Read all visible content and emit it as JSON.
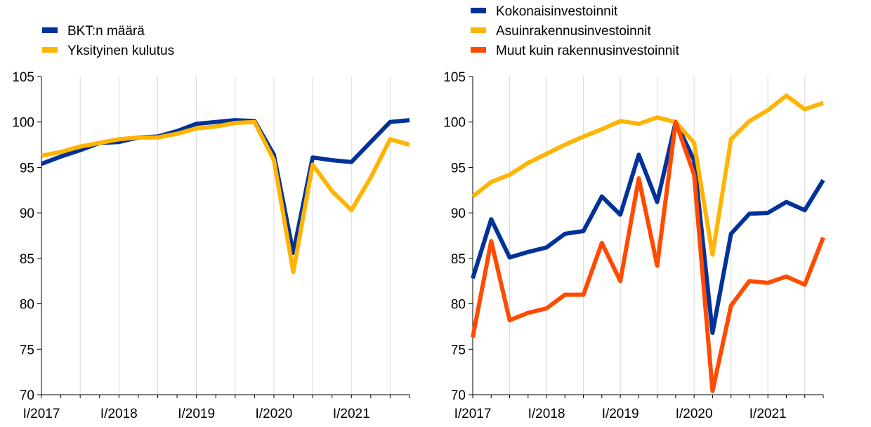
{
  "colors": {
    "navy": "#003299",
    "yellow": "#FFB400",
    "orange": "#FF4B00",
    "grid": "#d9d9d9",
    "axis": "#000000"
  },
  "chart_data": [
    {
      "type": "line",
      "title": "",
      "xlabel": "",
      "ylabel": "",
      "ylim": [
        70,
        105
      ],
      "yticks": [
        105,
        100,
        95,
        90,
        85,
        80,
        75,
        70
      ],
      "xtick_labels": [
        "I/2017",
        "I/2018",
        "I/2019",
        "I/2020",
        "I/2021"
      ],
      "grid": true,
      "legend_position": "top-left",
      "categories": [
        "2017Q1",
        "2017Q2",
        "2017Q3",
        "2017Q4",
        "2018Q1",
        "2018Q2",
        "2018Q3",
        "2018Q4",
        "2019Q1",
        "2019Q2",
        "2019Q3",
        "2019Q4",
        "2020Q1",
        "2020Q2",
        "2020Q3",
        "2020Q4",
        "2021Q1",
        "2021Q2",
        "2021Q3",
        "2021Q4"
      ],
      "series": [
        {
          "name": "BKT:n määrä",
          "color": "#003299",
          "values": [
            95.4,
            96.2,
            96.9,
            97.7,
            97.8,
            98.3,
            98.4,
            99.0,
            99.8,
            100.0,
            100.2,
            100.1,
            96.4,
            85.6,
            96.1,
            95.8,
            95.6,
            97.8,
            100.0,
            100.2
          ]
        },
        {
          "name": "Yksityinen kulutus",
          "color": "#FFB400",
          "values": [
            96.3,
            96.7,
            97.3,
            97.7,
            98.1,
            98.3,
            98.3,
            98.7,
            99.3,
            99.5,
            99.9,
            100.0,
            95.8,
            83.5,
            95.3,
            92.4,
            90.3,
            93.9,
            98.1,
            97.5
          ]
        }
      ]
    },
    {
      "type": "line",
      "title": "",
      "xlabel": "",
      "ylabel": "",
      "ylim": [
        70,
        105
      ],
      "yticks": [
        105,
        100,
        95,
        90,
        85,
        80,
        75,
        70
      ],
      "xtick_labels": [
        "I/2017",
        "I/2018",
        "I/2019",
        "I/2020",
        "I/2021"
      ],
      "grid": true,
      "legend_position": "top-left",
      "categories": [
        "2017Q1",
        "2017Q2",
        "2017Q3",
        "2017Q4",
        "2018Q1",
        "2018Q2",
        "2018Q3",
        "2018Q4",
        "2019Q1",
        "2019Q2",
        "2019Q3",
        "2019Q4",
        "2020Q1",
        "2020Q2",
        "2020Q3",
        "2020Q4",
        "2021Q1",
        "2021Q2",
        "2021Q3",
        "2021Q4"
      ],
      "series": [
        {
          "name": "Kokonaisinvestoinnit",
          "color": "#003299",
          "values": [
            82.8,
            89.3,
            85.1,
            85.7,
            86.2,
            87.7,
            88.0,
            91.8,
            89.8,
            96.4,
            91.2,
            100.0,
            95.8,
            76.8,
            87.7,
            89.9,
            90.0,
            91.2,
            90.3,
            93.6
          ]
        },
        {
          "name": "Asuinrakennusinvestoinnit",
          "color": "#FFB400",
          "values": [
            91.8,
            93.4,
            94.2,
            95.5,
            96.5,
            97.5,
            98.4,
            99.2,
            100.1,
            99.8,
            100.5,
            100.0,
            97.7,
            85.4,
            98.1,
            100.1,
            101.3,
            102.9,
            101.4,
            102.1
          ]
        },
        {
          "name": "Muut kuin rakennusinvestoinnit",
          "color": "#FF4B00",
          "values": [
            76.3,
            86.9,
            78.2,
            79.0,
            79.5,
            81.0,
            81.0,
            86.7,
            82.5,
            93.8,
            84.2,
            100.0,
            94.2,
            70.4,
            79.8,
            82.5,
            82.3,
            83.0,
            82.1,
            87.3
          ]
        }
      ]
    }
  ]
}
